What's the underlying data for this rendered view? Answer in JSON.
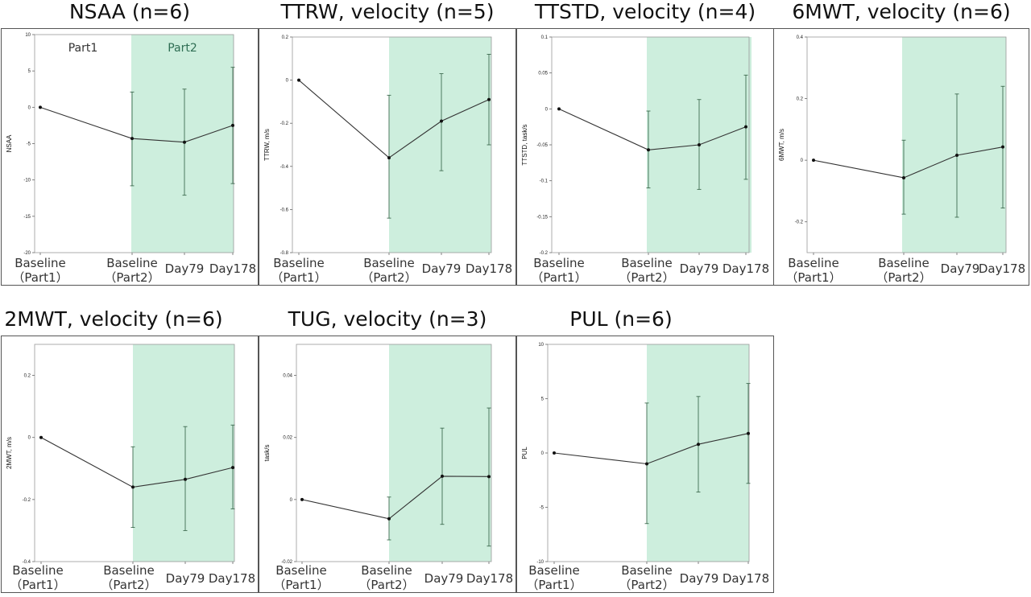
{
  "colors": {
    "shade": "#cdeedd",
    "line": "#333333",
    "errorbar": "#3f6b50",
    "part1_text": "#333333",
    "part2_text": "#2f6e54"
  },
  "x_labels": [
    {
      "line1": "Baseline",
      "line2": "（Part1）"
    },
    {
      "line1": "Baseline",
      "line2": "（Part2）"
    },
    {
      "line1": "Day79",
      "line2": ""
    },
    {
      "line1": "Day178",
      "line2": ""
    }
  ],
  "part_labels": {
    "part1": "Part1",
    "part2": "Part2"
  },
  "chart_data": [
    {
      "type": "line",
      "title": "NSAA (n=6)",
      "ylabel": "NSAA",
      "x": [
        "Baseline (Part1)",
        "Baseline (Part2)",
        "Day79",
        "Day178"
      ],
      "y": [
        0,
        -4.3,
        -4.8,
        -2.5
      ],
      "error_low": [
        0,
        -10.8,
        -12.1,
        -10.5
      ],
      "error_high": [
        0,
        2.1,
        2.5,
        5.5
      ],
      "ylim": [
        -20,
        10
      ],
      "yticks": [
        10,
        5,
        0,
        -5,
        -10,
        -15,
        -20
      ],
      "shaded_region": "Baseline (Part2) to Day178",
      "show_part_labels": true
    },
    {
      "type": "line",
      "title": "TTRW, velocity (n=5)",
      "ylabel": "TTRW, m/s",
      "x": [
        "Baseline (Part1)",
        "Baseline (Part2)",
        "Day79",
        "Day178"
      ],
      "y": [
        0,
        -0.36,
        -0.19,
        -0.09
      ],
      "error_low": [
        0,
        -0.64,
        -0.42,
        -0.3
      ],
      "error_high": [
        0,
        -0.07,
        0.03,
        0.12
      ],
      "ylim": [
        -0.8,
        0.2
      ],
      "yticks": [
        0.2,
        0.0,
        -0.2,
        -0.4,
        -0.6,
        -0.8
      ],
      "shaded_region": "Baseline (Part2) to Day178",
      "show_part_labels": false
    },
    {
      "type": "line",
      "title": "TTSTD, velocity (n=4)",
      "ylabel": "TTSTD, task/s",
      "x": [
        "Baseline (Part1)",
        "Baseline (Part2)",
        "Day79",
        "Day178"
      ],
      "y": [
        0,
        -0.057,
        -0.05,
        -0.025
      ],
      "error_low": [
        0,
        -0.11,
        -0.112,
        -0.098
      ],
      "error_high": [
        0,
        -0.003,
        0.013,
        0.047
      ],
      "ylim": [
        -0.2,
        0.1
      ],
      "yticks": [
        0.1,
        0.05,
        0.0,
        -0.05,
        -0.1,
        -0.15,
        -0.2
      ],
      "shaded_region": "Baseline (Part2) to Day178",
      "show_part_labels": false
    },
    {
      "type": "line",
      "title": "6MWT, velocity (n=6)",
      "ylabel": "6MWT, m/s",
      "x": [
        "Baseline (Part1)",
        "Baseline (Part2)",
        "Day79",
        "Day178"
      ],
      "y": [
        0,
        -0.057,
        0.016,
        0.043
      ],
      "error_low": [
        0,
        -0.175,
        -0.185,
        -0.155
      ],
      "error_high": [
        0,
        0.065,
        0.215,
        0.24
      ],
      "ylim": [
        -0.3,
        0.4
      ],
      "yticks": [
        0.4,
        0.2,
        0.0,
        -0.2
      ],
      "shaded_region": "Baseline (Part2) to Day178",
      "show_part_labels": false
    },
    {
      "type": "line",
      "title": "2MWT, velocity (n=6)",
      "ylabel": "2MWT, m/s",
      "x": [
        "Baseline (Part1)",
        "Baseline (Part2)",
        "Day79",
        "Day178"
      ],
      "y": [
        0,
        -0.16,
        -0.135,
        -0.097
      ],
      "error_low": [
        0,
        -0.29,
        -0.3,
        -0.23
      ],
      "error_high": [
        0,
        -0.03,
        0.035,
        0.04
      ],
      "ylim": [
        -0.4,
        0.3
      ],
      "yticks": [
        0.2,
        0.0,
        -0.2,
        -0.4
      ],
      "shaded_region": "Baseline (Part2) to Day178",
      "show_part_labels": false
    },
    {
      "type": "line",
      "title": "TUG, velocity (n=3)",
      "ylabel": "task/s",
      "x": [
        "Baseline (Part1)",
        "Baseline (Part2)",
        "Day79",
        "Day178"
      ],
      "y": [
        0,
        -0.0062,
        0.0075,
        0.0074
      ],
      "error_low": [
        0,
        -0.013,
        -0.008,
        -0.015
      ],
      "error_high": [
        0,
        0.0008,
        0.023,
        0.0295
      ],
      "ylim": [
        -0.02,
        0.05
      ],
      "yticks": [
        0.04,
        0.02,
        0.0,
        -0.02
      ],
      "shaded_region": "Baseline (Part2) to Day178",
      "show_part_labels": false
    },
    {
      "type": "line",
      "title": "PUL (n=6)",
      "ylabel": "PUL",
      "x": [
        "Baseline (Part1)",
        "Baseline (Part2)",
        "Day79",
        "Day178"
      ],
      "y": [
        0,
        -1.0,
        0.8,
        1.8
      ],
      "error_low": [
        0,
        -6.5,
        -3.6,
        -2.8
      ],
      "error_high": [
        0,
        4.6,
        5.2,
        6.4
      ],
      "ylim": [
        -10,
        10
      ],
      "yticks": [
        10,
        5,
        0,
        -5,
        -10
      ],
      "shaded_region": "Baseline (Part2) to Day178",
      "show_part_labels": false
    }
  ]
}
